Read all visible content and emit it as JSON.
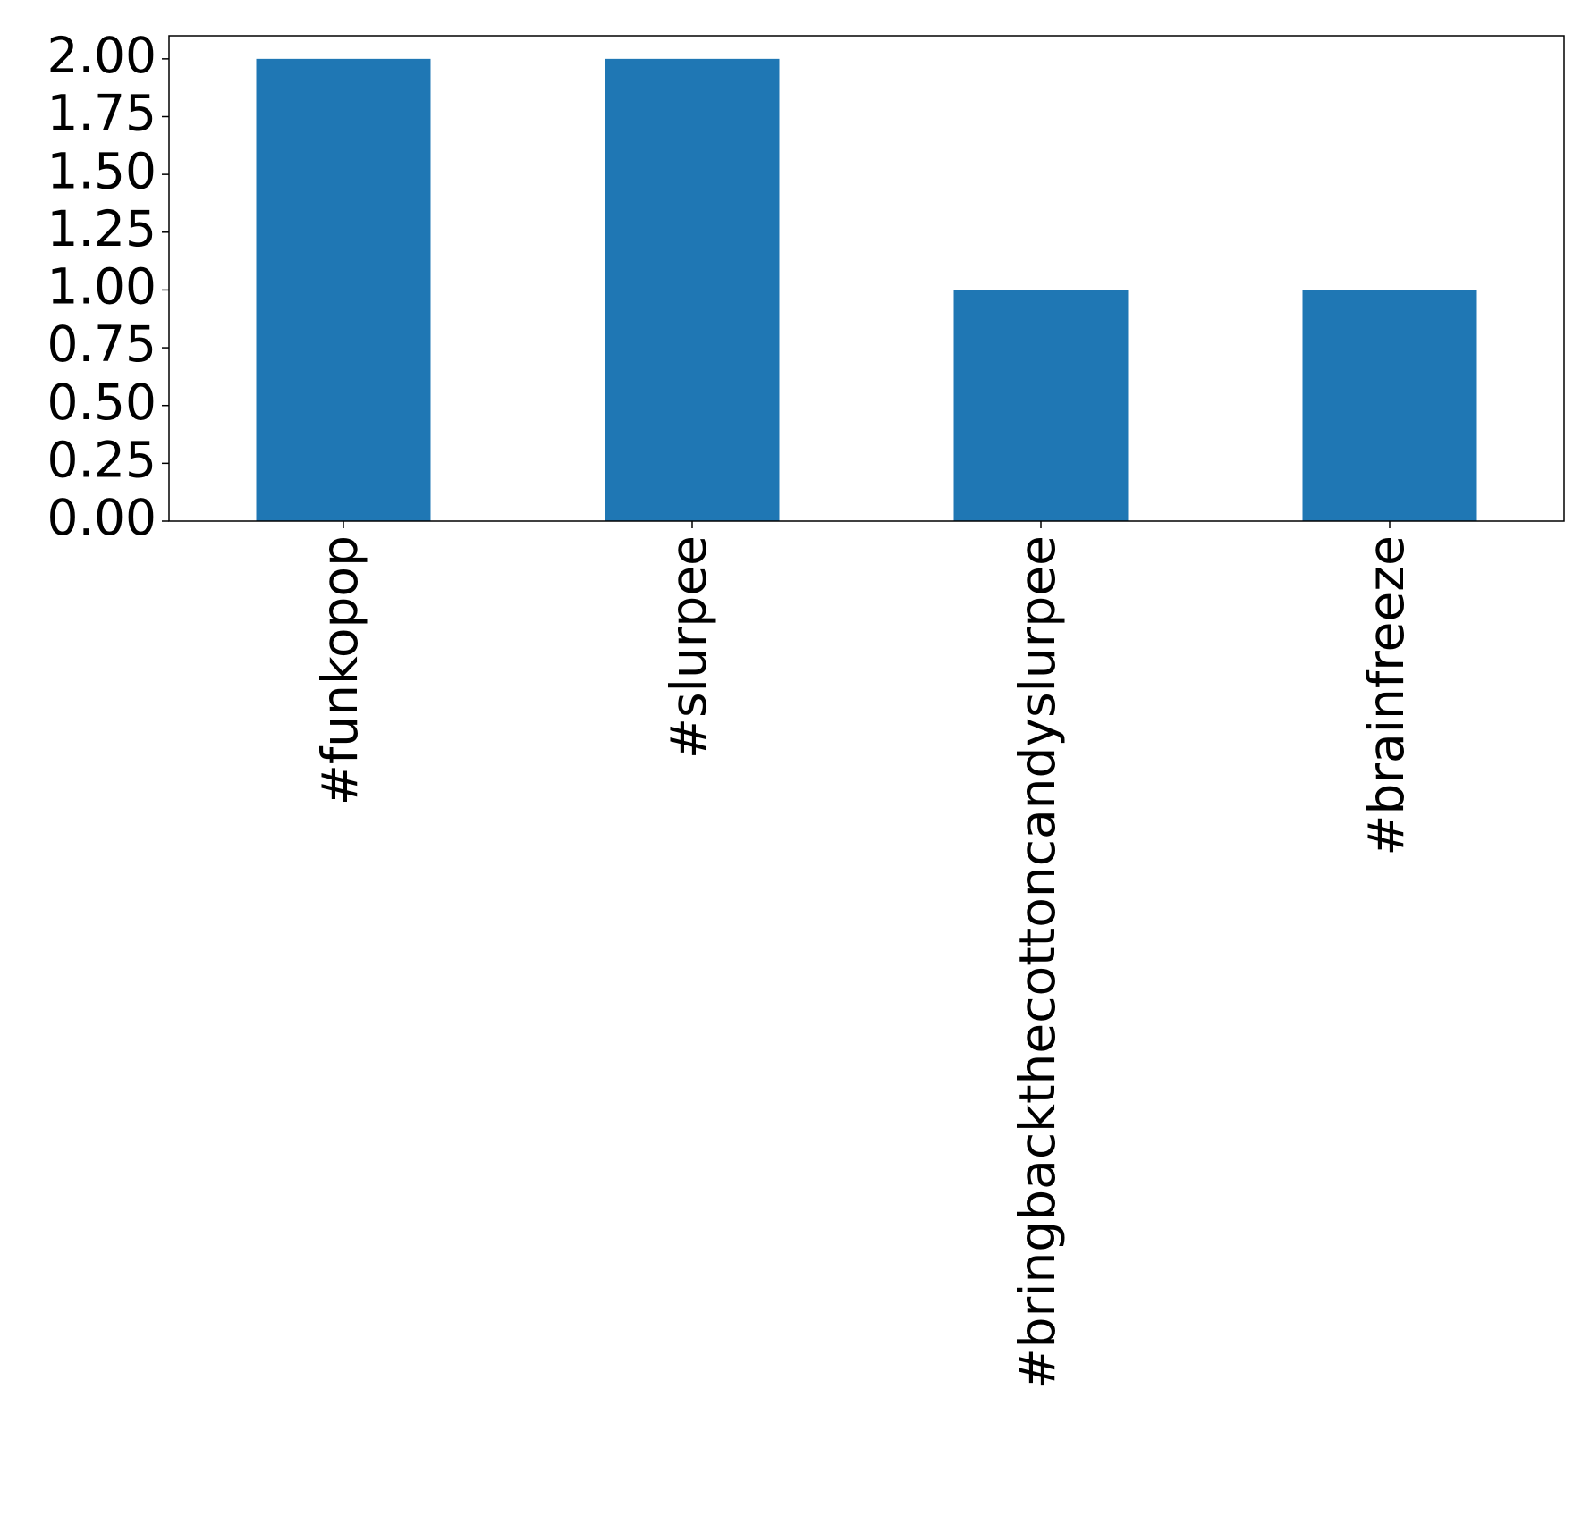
{
  "chart_data": {
    "type": "bar",
    "categories": [
      "#funkopop",
      "#slurpee",
      "#bringbackthecottoncandyslurpee",
      "#brainfreeze"
    ],
    "values": [
      2,
      2,
      1,
      1
    ],
    "color": "#1f77b4",
    "ylim": [
      0,
      2.1
    ],
    "yticks": [
      {
        "value": 0,
        "label": "0.00"
      },
      {
        "value": 0.25,
        "label": "0.25"
      },
      {
        "value": 0.5,
        "label": "0.50"
      },
      {
        "value": 0.75,
        "label": "0.75"
      },
      {
        "value": 1,
        "label": "1.00"
      },
      {
        "value": 1.25,
        "label": "1.25"
      },
      {
        "value": 1.5,
        "label": "1.50"
      },
      {
        "value": 1.75,
        "label": "1.75"
      },
      {
        "value": 2,
        "label": "2.00"
      }
    ],
    "grid": false
  }
}
